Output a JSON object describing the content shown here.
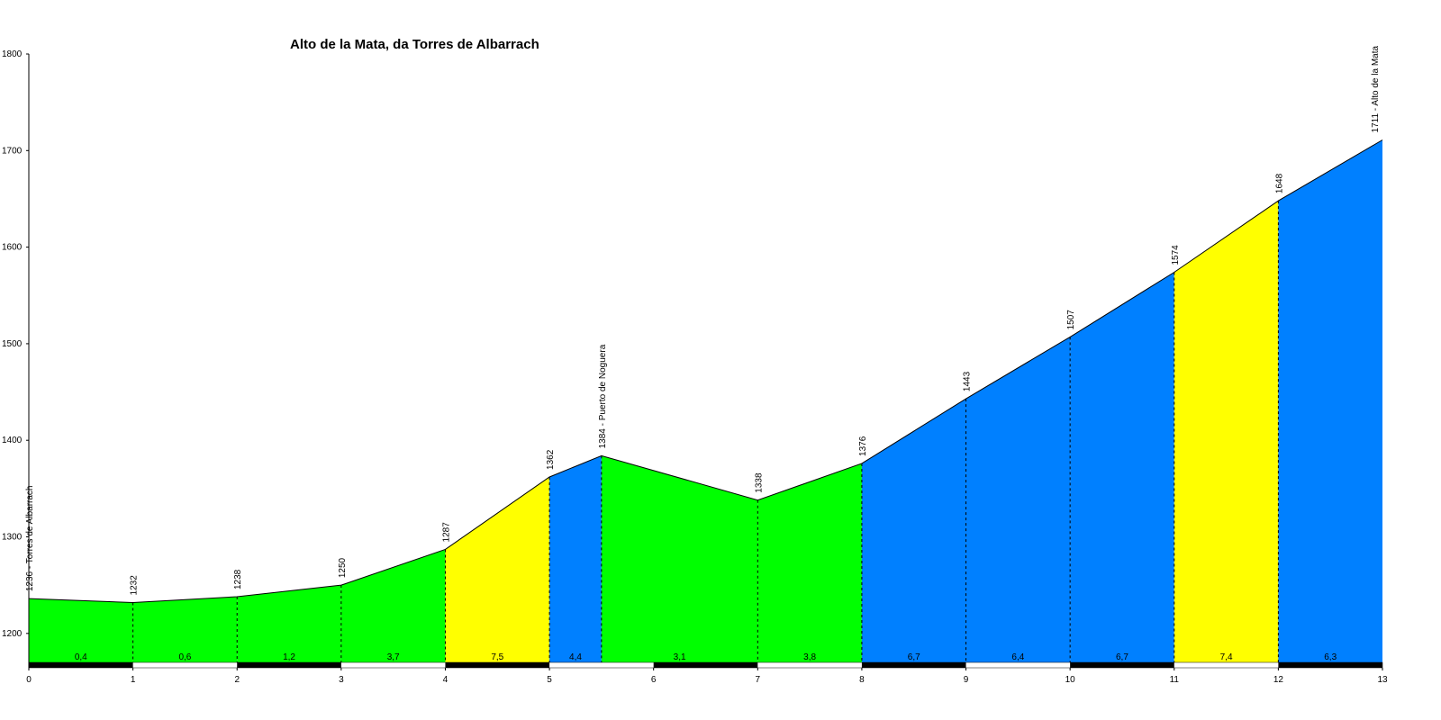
{
  "chart_data": {
    "type": "area",
    "title": "Alto de la Mata, da Torres de Albarrach",
    "xlabel": "",
    "ylabel": "",
    "xlim": [
      0,
      13
    ],
    "ylim": [
      1170,
      1800
    ],
    "x_ticks": [
      "0",
      "1",
      "2",
      "3",
      "4",
      "5",
      "6",
      "7",
      "8",
      "9",
      "10",
      "11",
      "12",
      "13"
    ],
    "y_ticks": [
      "1200",
      "1300",
      "1400",
      "1500",
      "1600",
      "1700",
      "1800"
    ],
    "profile": [
      {
        "x": 0,
        "y": 1236,
        "label": "1236 - Torres de Albarrach"
      },
      {
        "x": 1,
        "y": 1232,
        "label": "1232"
      },
      {
        "x": 2,
        "y": 1238,
        "label": "1238"
      },
      {
        "x": 3,
        "y": 1250,
        "label": "1250"
      },
      {
        "x": 4,
        "y": 1287,
        "label": "1287"
      },
      {
        "x": 5,
        "y": 1362,
        "label": "1362"
      },
      {
        "x": 5.5,
        "y": 1384,
        "label": "1384 - Puerto de Noguera"
      },
      {
        "x": 7,
        "y": 1338,
        "label": "1338"
      },
      {
        "x": 8,
        "y": 1376,
        "label": "1376"
      },
      {
        "x": 9,
        "y": 1443,
        "label": "1443"
      },
      {
        "x": 10,
        "y": 1507,
        "label": "1507"
      },
      {
        "x": 11,
        "y": 1574,
        "label": "1574"
      },
      {
        "x": 12,
        "y": 1648,
        "label": "1648"
      },
      {
        "x": 13,
        "y": 1711,
        "label": "1711 - Alto de la Mata"
      }
    ],
    "segments": [
      {
        "from": 0,
        "to": 1,
        "grade": "0,4",
        "color": "#00ff00"
      },
      {
        "from": 1,
        "to": 2,
        "grade": "0,6",
        "color": "#00ff00"
      },
      {
        "from": 2,
        "to": 3,
        "grade": "1,2",
        "color": "#00ff00"
      },
      {
        "from": 3,
        "to": 4,
        "grade": "3,7",
        "color": "#00ff00"
      },
      {
        "from": 4,
        "to": 5,
        "grade": "7,5",
        "color": "#ffff00"
      },
      {
        "from": 5,
        "to": 5.5,
        "grade": "4,4",
        "color": "#0080ff"
      },
      {
        "from": 5.5,
        "to": 7,
        "grade": "3,1",
        "color": "#00ff00"
      },
      {
        "from": 7,
        "to": 8,
        "grade": "3,8",
        "color": "#00ff00"
      },
      {
        "from": 8,
        "to": 9,
        "grade": "6,7",
        "color": "#0080ff"
      },
      {
        "from": 9,
        "to": 10,
        "grade": "6,4",
        "color": "#0080ff"
      },
      {
        "from": 10,
        "to": 11,
        "grade": "6,7",
        "color": "#0080ff"
      },
      {
        "from": 11,
        "to": 12,
        "grade": "7,4",
        "color": "#ffff00"
      },
      {
        "from": 12,
        "to": 13,
        "grade": "6,3",
        "color": "#0080ff"
      }
    ]
  }
}
